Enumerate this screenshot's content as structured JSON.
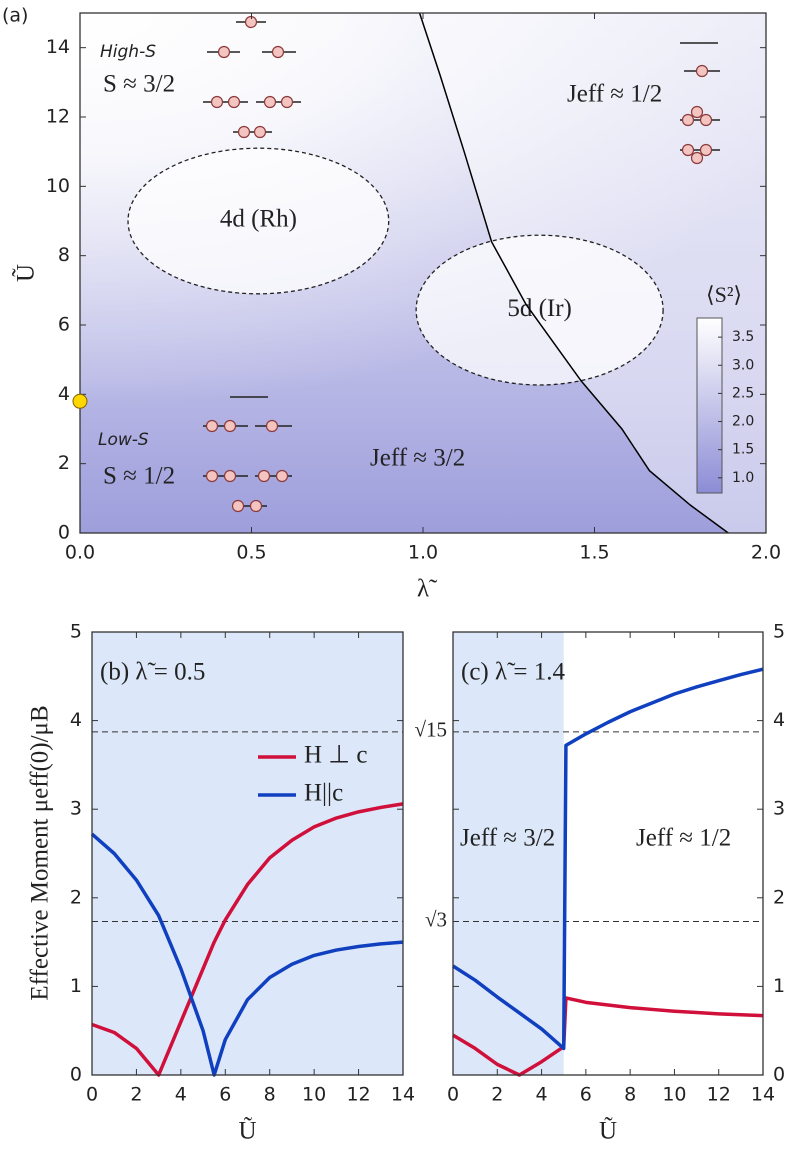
{
  "chart_data": [
    {
      "type": "heatmap",
      "panel": "(a)",
      "xlabel": "λ̃",
      "ylabel": "Ũ",
      "xlim": [
        0,
        2
      ],
      "ylim": [
        0,
        15
      ],
      "xticks": [
        {
          "value": 0,
          "label": "0.0"
        },
        0.5,
        {
          "value": 1,
          "label": "1.0"
        },
        1.5,
        {
          "value": 2,
          "label": "2.0"
        }
      ],
      "yticks": [
        0,
        2,
        4,
        6,
        8,
        10,
        12,
        14
      ],
      "colorbar": {
        "label": "⟨S²⟩",
        "lim": [
          0.73,
          3.84
        ],
        "colors": [
          "#8c8cd6",
          "#ffffff"
        ],
        "ticks": [
          {
            "value": 1,
            "label": "1.0"
          },
          1.5,
          {
            "value": 2,
            "label": "2.0"
          },
          2.5,
          {
            "value": 3,
            "label": "3.0"
          },
          3.5
        ]
      },
      "boundary": {
        "color": "#000000",
        "x": [
          0.99,
          1.05,
          1.12,
          1.2,
          1.3,
          1.46,
          1.58,
          1.66,
          1.78,
          1.89
        ],
        "y": [
          15,
          13.2,
          11,
          8.4,
          6.6,
          4.4,
          3.0,
          1.8,
          0.8,
          0
        ]
      },
      "critical_point": {
        "x": 0,
        "y": 3.8,
        "color": "#ffd700"
      },
      "regions": [
        {
          "label": "4d (Rh)",
          "x": 0.52,
          "y": 9.0,
          "rx": 0.38,
          "ry": 2.1
        },
        {
          "label": "5d (Ir)",
          "x": 1.34,
          "y": 6.43,
          "rx": 0.36,
          "ry": 2.16
        }
      ],
      "annotations": [
        "High-S",
        "S ≈ 3/2",
        "Low-S",
        "S ≈ 1/2",
        "Jeff ≈ 3/2",
        "Jeff ≈ 1/2"
      ]
    },
    {
      "type": "line",
      "panel": "(b) λ̃ = 0.5",
      "xlabel": "Ũ",
      "ylabel": "Effective Moment μeff(0)/μB",
      "xlim": [
        0,
        14
      ],
      "ylim": [
        0,
        5
      ],
      "xticks": [
        0,
        2,
        4,
        6,
        8,
        10,
        12,
        14
      ],
      "yticks": [
        0,
        1,
        2,
        3,
        4,
        5
      ],
      "yaxis_side": "left",
      "shaded_x": [
        0,
        14
      ],
      "shade_color": "#dce8f9",
      "hlines": [
        3.873,
        1.732
      ],
      "legend": "right",
      "x": [
        0,
        1,
        2,
        3,
        3.5,
        4,
        5,
        5.5,
        6,
        7,
        8,
        9,
        10,
        11,
        12,
        13,
        14
      ],
      "series": [
        {
          "name": "H ⊥ c",
          "color": "#d0103a",
          "values": [
            0.57,
            0.48,
            0.3,
            0.0,
            0.3,
            0.6,
            1.2,
            1.5,
            1.75,
            2.15,
            2.45,
            2.65,
            2.8,
            2.9,
            2.97,
            3.02,
            3.06
          ]
        },
        {
          "name": "H||c",
          "color": "#1040c0",
          "values": [
            2.72,
            2.5,
            2.2,
            1.8,
            1.5,
            1.2,
            0.5,
            0.0,
            0.4,
            0.85,
            1.1,
            1.25,
            1.35,
            1.41,
            1.45,
            1.48,
            1.5
          ]
        }
      ]
    },
    {
      "type": "line",
      "panel": "(c) λ̃ = 1.4",
      "xlabel": "Ũ",
      "xlim": [
        0,
        14
      ],
      "ylim": [
        0,
        5
      ],
      "xticks": [
        0,
        2,
        4,
        6,
        8,
        10,
        12,
        14
      ],
      "yticks": [
        0,
        1,
        2,
        3,
        4,
        5
      ],
      "yaxis_side": "right",
      "shaded_x": [
        0,
        5
      ],
      "shade_color": "#dce8f9",
      "hlines": [
        {
          "value": 3.873,
          "label": "√15"
        },
        {
          "value": 1.732,
          "label": "√3"
        }
      ],
      "annotations": [
        "Jeff ≈ 3/2",
        "Jeff ≈ 1/2"
      ],
      "x": [
        0,
        1,
        2,
        3,
        4,
        5,
        5.1,
        6,
        7,
        8,
        9,
        10,
        11,
        12,
        13,
        14
      ],
      "series": [
        {
          "color": "#d0103a",
          "values": [
            0.45,
            0.3,
            0.12,
            0.0,
            0.15,
            0.32,
            0.87,
            0.82,
            0.79,
            0.76,
            0.74,
            0.72,
            0.705,
            0.69,
            0.68,
            0.67
          ]
        },
        {
          "color": "#1040c0",
          "values": [
            1.23,
            1.07,
            0.88,
            0.7,
            0.52,
            0.3,
            3.72,
            3.85,
            3.98,
            4.1,
            4.2,
            4.3,
            4.38,
            4.45,
            4.52,
            4.58
          ]
        }
      ]
    }
  ]
}
